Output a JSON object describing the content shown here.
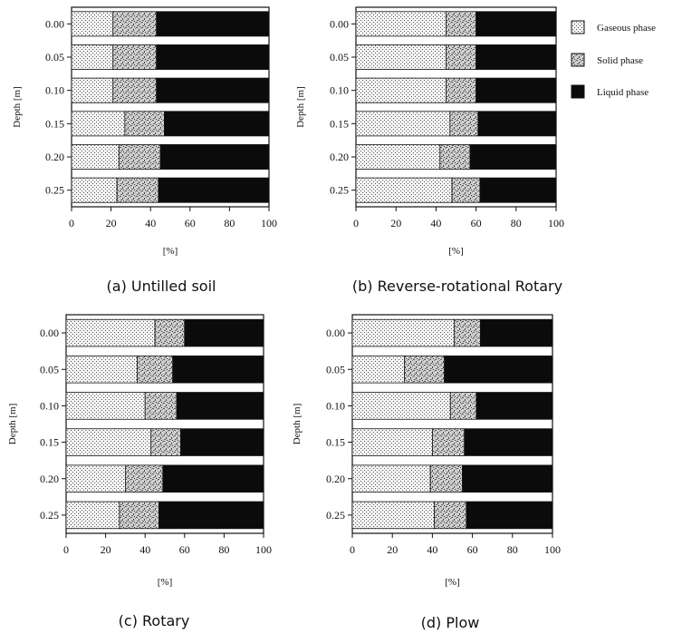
{
  "legend": [
    {
      "key": "gaseous",
      "label": "Gaseous phase"
    },
    {
      "key": "solid",
      "label": "Solid phase"
    },
    {
      "key": "liquid",
      "label": "Liquid phase"
    }
  ],
  "colors": {
    "gaseous": "#e6e6e6",
    "solid": "#b9b9b9",
    "liquid": "#0b0b0b",
    "frame": "#111111"
  },
  "chart_data": [
    {
      "type": "bar",
      "stacked": true,
      "orientation": "horizontal",
      "caption": "(a) Untilled soil",
      "ylabel": "Depth [m]",
      "xlabel": "[%]",
      "xlim": [
        0,
        100
      ],
      "xticks": [
        "0",
        "20",
        "40",
        "60",
        "80",
        "100"
      ],
      "categories": [
        "0.00",
        "0.05",
        "0.10",
        "0.15",
        "0.20",
        "0.25"
      ],
      "series": [
        {
          "name": "Gaseous phase",
          "key": "gaseous",
          "values": [
            21,
            21,
            21,
            27,
            24,
            23
          ]
        },
        {
          "name": "Solid phase",
          "key": "solid",
          "values": [
            22,
            22,
            22,
            20,
            21,
            21
          ]
        },
        {
          "name": "Liquid phase",
          "key": "liquid",
          "values": [
            57,
            57,
            57,
            53,
            55,
            56
          ]
        }
      ]
    },
    {
      "type": "bar",
      "stacked": true,
      "orientation": "horizontal",
      "caption": "(b) Reverse-rotational Rotary",
      "ylabel": "Depth [m]",
      "xlabel": "[%]",
      "xlim": [
        0,
        100
      ],
      "xticks": [
        "0",
        "20",
        "40",
        "60",
        "80",
        "100"
      ],
      "categories": [
        "0.00",
        "0.05",
        "0.10",
        "0.15",
        "0.20",
        "0.25"
      ],
      "series": [
        {
          "name": "Gaseous phase",
          "key": "gaseous",
          "values": [
            45,
            45,
            45,
            47,
            42,
            48
          ]
        },
        {
          "name": "Solid phase",
          "key": "solid",
          "values": [
            15,
            15,
            15,
            14,
            15,
            14
          ]
        },
        {
          "name": "Liquid phase",
          "key": "liquid",
          "values": [
            40,
            40,
            40,
            39,
            43,
            38
          ]
        }
      ]
    },
    {
      "type": "bar",
      "stacked": true,
      "orientation": "horizontal",
      "caption": "(c) Rotary",
      "ylabel": "Depth [m]",
      "xlabel": "[%]",
      "xlim": [
        0,
        100
      ],
      "xticks": [
        "0",
        "20",
        "40",
        "60",
        "80",
        "100"
      ],
      "categories": [
        "0.00",
        "0.05",
        "0.10",
        "0.15",
        "0.20",
        "0.25"
      ],
      "series": [
        {
          "name": "Gaseous phase",
          "key": "gaseous",
          "values": [
            45,
            36,
            40,
            43,
            30,
            27
          ]
        },
        {
          "name": "Solid phase",
          "key": "solid",
          "values": [
            15,
            18,
            16,
            15,
            19,
            20
          ]
        },
        {
          "name": "Liquid phase",
          "key": "liquid",
          "values": [
            40,
            46,
            44,
            42,
            51,
            53
          ]
        }
      ]
    },
    {
      "type": "bar",
      "stacked": true,
      "orientation": "horizontal",
      "caption": "(d) Plow",
      "ylabel": "Depth [m]",
      "xlabel": "[%]",
      "xlim": [
        0,
        100
      ],
      "xticks": [
        "0",
        "20",
        "40",
        "60",
        "80",
        "100"
      ],
      "categories": [
        "0.00",
        "0.05",
        "0.10",
        "0.15",
        "0.20",
        "0.25"
      ],
      "series": [
        {
          "name": "Gaseous phase",
          "key": "gaseous",
          "values": [
            51,
            26,
            49,
            40,
            39,
            41
          ]
        },
        {
          "name": "Solid phase",
          "key": "solid",
          "values": [
            13,
            20,
            13,
            16,
            16,
            16
          ]
        },
        {
          "name": "Liquid phase",
          "key": "liquid",
          "values": [
            36,
            54,
            38,
            44,
            45,
            43
          ]
        }
      ]
    }
  ]
}
